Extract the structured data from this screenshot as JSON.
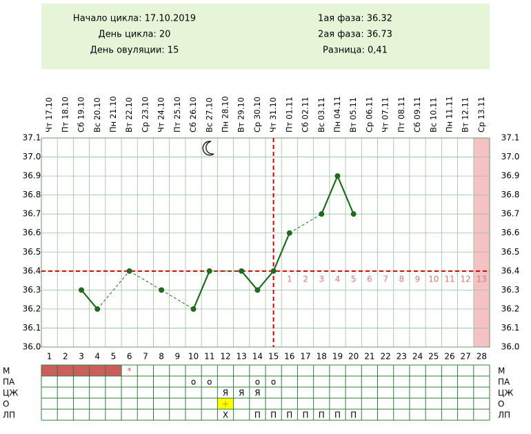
{
  "header": {
    "left": [
      "Начало цикла: 17.10.2019",
      "День цикла: 20",
      "День овуляции: 15"
    ],
    "right": [
      "1ая фаза: 36.32",
      "2ая фаза: 36.73",
      "Разница: 0,41"
    ]
  },
  "chart_data": {
    "type": "line",
    "categories": [
      "Чт 17.10",
      "Пт 18.10",
      "Сб 19.10",
      "Вс 20.10",
      "Пн 21.10",
      "Вт 22.10",
      "Ср 23.10",
      "Чт 24.10",
      "Пт 25.10",
      "Сб 26.10",
      "Вс 27.10",
      "Пн 28.10",
      "Вт 29.10",
      "Ср 30.10",
      "Чт 31.10",
      "Пт 01.11",
      "Сб 02.11",
      "Вс 03.11",
      "Пн 04.11",
      "Вт 05.11",
      "Ср 06.11",
      "Чт 07.11",
      "Пт 08.11",
      "Сб 09.11",
      "Вс 10.11",
      "Пн 11.11",
      "Вт 12.11",
      "Ср 13.11"
    ],
    "days": [
      1,
      2,
      3,
      4,
      5,
      6,
      7,
      8,
      9,
      10,
      11,
      12,
      13,
      14,
      15,
      16,
      17,
      18,
      19,
      20,
      21,
      22,
      23,
      24,
      25,
      26,
      27,
      28
    ],
    "values": [
      null,
      null,
      36.3,
      36.2,
      null,
      36.4,
      null,
      36.3,
      null,
      36.2,
      36.4,
      null,
      36.4,
      36.3,
      36.4,
      36.6,
      null,
      36.7,
      36.9,
      36.7,
      null,
      null,
      null,
      null,
      null,
      null,
      null,
      null
    ],
    "color": "#1e6b1e",
    "ylim": [
      36.0,
      37.1
    ],
    "yticks": [
      {
        "value": 36.0,
        "label": "36.0"
      },
      36.1,
      36.2,
      36.3,
      36.4,
      36.5,
      36.6,
      36.7,
      36.8,
      36.9,
      {
        "value": 37.0,
        "label": "37.0"
      },
      37.1
    ],
    "grid": true,
    "coverline": 36.4,
    "ovulation_day": 15,
    "phase_days": [
      1,
      2,
      3,
      4,
      5,
      6,
      7,
      8,
      9,
      10,
      11,
      12,
      13
    ],
    "highlight_day": 28,
    "highlight_color": "#f4c2c2",
    "marker_color": "#cc0000"
  },
  "symptoms": [
    {
      "label": "М",
      "fill": "#cd5c5c",
      "filled_days": [
        1,
        2,
        3,
        4,
        5
      ],
      "marks": [
        {
          "day": 6,
          "text": "*"
        }
      ]
    },
    {
      "label": "ПА",
      "marks": [
        {
          "day": 10,
          "text": "o"
        },
        {
          "day": 11,
          "text": "o"
        },
        {
          "day": 14,
          "text": "o"
        },
        {
          "day": 15,
          "text": "o"
        }
      ]
    },
    {
      "label": "ЦЖ",
      "marks": [
        {
          "day": 12,
          "text": "Я"
        },
        {
          "day": 13,
          "text": "Я"
        },
        {
          "day": 14,
          "text": "Я"
        }
      ]
    },
    {
      "label": "О",
      "fill": "#ffff00",
      "filled_days": [
        12
      ],
      "marks": [
        {
          "day": 12,
          "text": "+"
        }
      ]
    },
    {
      "label": "ЛП",
      "marks": [
        {
          "day": 12,
          "text": "X"
        },
        {
          "day": 14,
          "text": "П"
        },
        {
          "day": 15,
          "text": "П"
        },
        {
          "day": 16,
          "text": "П"
        },
        {
          "day": 17,
          "text": "П"
        },
        {
          "day": 18,
          "text": "П"
        },
        {
          "day": 19,
          "text": "П"
        },
        {
          "day": 20,
          "text": "П"
        }
      ]
    }
  ]
}
